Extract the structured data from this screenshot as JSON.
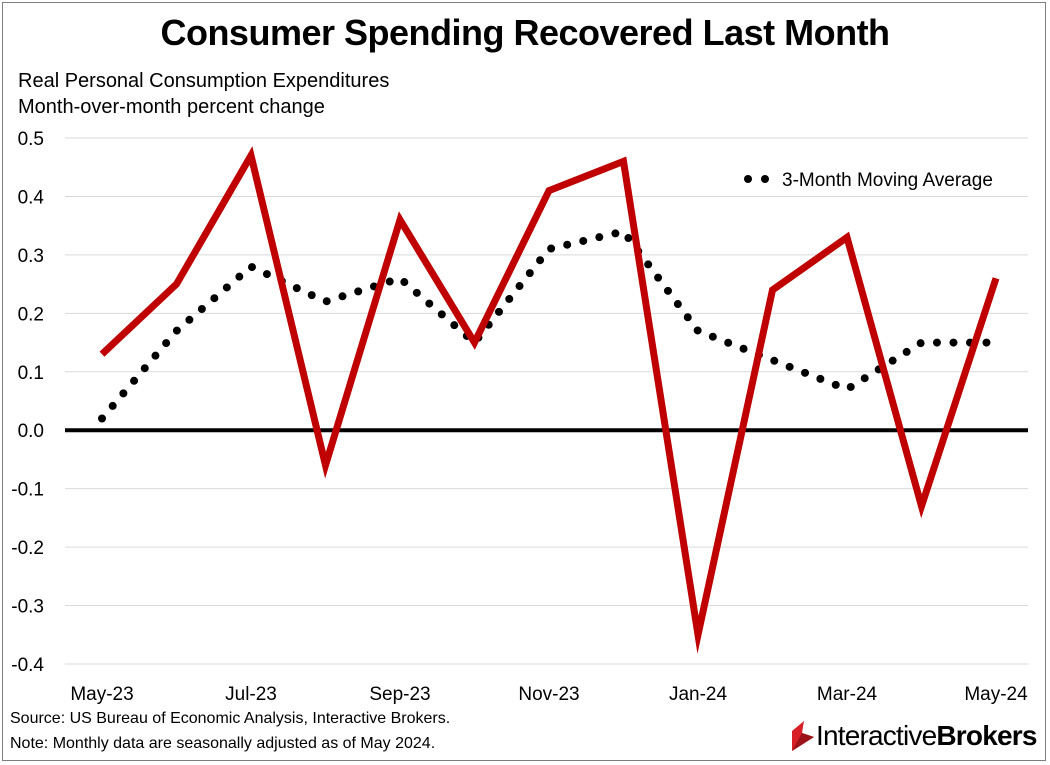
{
  "title": "Consumer Spending Recovered Last Month",
  "subtitle_line1": "Real Personal Consumption Expenditures",
  "subtitle_line2": "Month-over-month percent change",
  "footer_source": "Source: US Bureau of Economic Analysis, Interactive Brokers.",
  "footer_note": "Note: Monthly data are seasonally adjusted as of May 2024.",
  "logo": {
    "text_regular": "Interactive",
    "text_bold": "Brokers"
  },
  "colors": {
    "main_line": "#c00000",
    "moving_average": "#000000",
    "zero_line": "#000000",
    "grid": "#d9d9d9",
    "logo_red": "#d81f26"
  },
  "chart_data": {
    "type": "line",
    "x": [
      "May-23",
      "Jun-23",
      "Jul-23",
      "Aug-23",
      "Sep-23",
      "Oct-23",
      "Nov-23",
      "Dec-23",
      "Jan-24",
      "Feb-24",
      "Mar-24",
      "Apr-24",
      "May-24"
    ],
    "xtick_labels": [
      "May-23",
      "Jul-23",
      "Sep-23",
      "Nov-23",
      "Jan-24",
      "Mar-24",
      "May-24"
    ],
    "ylim": [
      -0.4,
      0.5
    ],
    "yticks": [
      "0.5",
      "0.4",
      "0.3",
      "0.2",
      "0.1",
      "0.0",
      "-0.1",
      "-0.2",
      "-0.3",
      "-0.4"
    ],
    "ytick_values": [
      0.5,
      0.4,
      0.3,
      0.2,
      0.1,
      0.0,
      -0.1,
      -0.2,
      -0.3,
      -0.4
    ],
    "series": [
      {
        "name": "Real PCE MoM % change",
        "style": "solid",
        "values": [
          0.13,
          0.25,
          0.47,
          -0.06,
          0.36,
          0.15,
          0.41,
          0.46,
          -0.35,
          0.24,
          0.33,
          -0.13,
          0.26
        ]
      },
      {
        "name": "3-Month Moving Average",
        "style": "dotted",
        "values": [
          0.02,
          0.17,
          0.28,
          0.22,
          0.26,
          0.15,
          0.31,
          0.34,
          0.17,
          0.12,
          0.07,
          0.15,
          0.15
        ]
      }
    ],
    "legend": {
      "label": "3-Month Moving Average",
      "position": "top-right"
    },
    "grid": true
  }
}
